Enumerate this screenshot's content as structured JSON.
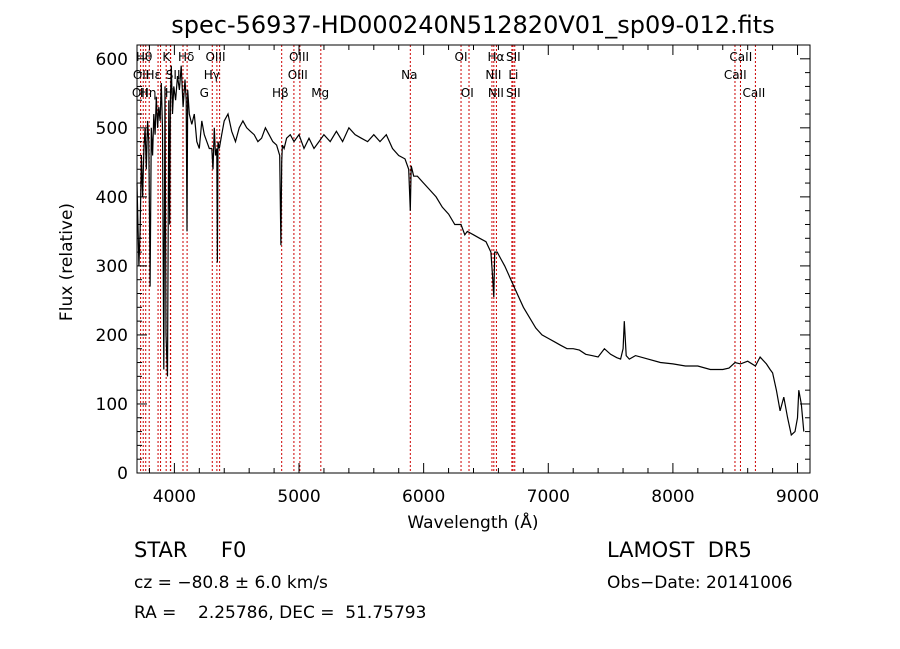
{
  "chart_data": {
    "type": "line",
    "title": "spec-56937-HD000240N512820V01_sp09-012.fits",
    "xlabel": "Wavelength (Å)",
    "ylabel": "Flux (relative)",
    "xlim": [
      3700,
      9100
    ],
    "ylim": [
      0,
      620
    ],
    "xticks": [
      4000,
      5000,
      6000,
      7000,
      8000,
      9000
    ],
    "yticks": [
      0,
      100,
      200,
      300,
      400,
      500,
      600
    ],
    "grid": false,
    "line_color": "#000000",
    "marker_color": "#cc0000",
    "series": [
      {
        "x": [
          3700,
          3715,
          3725,
          3735,
          3745,
          3755,
          3765,
          3775,
          3785,
          3795,
          3805,
          3815,
          3825,
          3835,
          3845,
          3855,
          3865,
          3875,
          3885,
          3895,
          3905,
          3915,
          3925,
          3933,
          3945,
          3955,
          3962,
          3968,
          3975,
          3985,
          3995,
          4010,
          4025,
          4040,
          4055,
          4070,
          4085,
          4095,
          4101,
          4107,
          4120,
          4140,
          4160,
          4180,
          4200,
          4220,
          4240,
          4260,
          4280,
          4300,
          4310,
          4320,
          4330,
          4340,
          4345,
          4350,
          4360,
          4380,
          4400,
          4430,
          4460,
          4490,
          4520,
          4550,
          4580,
          4610,
          4640,
          4670,
          4700,
          4730,
          4760,
          4790,
          4820,
          4845,
          4855,
          4861,
          4867,
          4880,
          4900,
          4930,
          4960,
          5000,
          5040,
          5080,
          5120,
          5160,
          5200,
          5250,
          5300,
          5350,
          5400,
          5450,
          5500,
          5550,
          5600,
          5650,
          5700,
          5750,
          5800,
          5850,
          5880,
          5893,
          5900,
          5920,
          5950,
          6000,
          6050,
          6100,
          6150,
          6200,
          6250,
          6300,
          6330,
          6350,
          6400,
          6450,
          6500,
          6540,
          6555,
          6563,
          6570,
          6590,
          6620,
          6650,
          6700,
          6750,
          6800,
          6850,
          6900,
          6950,
          7000,
          7050,
          7100,
          7150,
          7200,
          7250,
          7300,
          7350,
          7400,
          7450,
          7500,
          7550,
          7580,
          7600,
          7610,
          7625,
          7650,
          7700,
          7800,
          7900,
          8000,
          8100,
          8200,
          8300,
          8400,
          8450,
          8498,
          8542,
          8600,
          8662,
          8700,
          8750,
          8780,
          8800,
          8830,
          8860,
          8890,
          8920,
          8950,
          8980,
          9000,
          9010,
          9030,
          9050
        ],
        "y": [
          420,
          300,
          350,
          460,
          400,
          470,
          500,
          440,
          510,
          480,
          270,
          500,
          460,
          520,
          490,
          545,
          500,
          530,
          510,
          565,
          500,
          150,
          560,
          200,
          140,
          540,
          360,
          540,
          590,
          520,
          560,
          540,
          575,
          555,
          590,
          530,
          570,
          540,
          350,
          555,
          520,
          505,
          520,
          480,
          470,
          510,
          490,
          480,
          470,
          470,
          440,
          500,
          460,
          470,
          305,
          480,
          470,
          490,
          510,
          520,
          495,
          480,
          500,
          510,
          500,
          495,
          490,
          480,
          485,
          500,
          490,
          480,
          475,
          460,
          330,
          450,
          475,
          470,
          485,
          490,
          480,
          490,
          470,
          485,
          470,
          480,
          490,
          480,
          495,
          480,
          500,
          490,
          485,
          480,
          490,
          480,
          490,
          470,
          460,
          455,
          440,
          380,
          445,
          430,
          430,
          420,
          410,
          400,
          385,
          375,
          360,
          360,
          345,
          350,
          345,
          340,
          335,
          320,
          280,
          255,
          320,
          320,
          310,
          300,
          280,
          260,
          240,
          225,
          210,
          200,
          195,
          190,
          185,
          180,
          180,
          178,
          172,
          170,
          168,
          180,
          172,
          167,
          165,
          180,
          220,
          170,
          165,
          170,
          165,
          160,
          158,
          155,
          155,
          150,
          150,
          152,
          160,
          158,
          162,
          155,
          168,
          158,
          150,
          145,
          120,
          90,
          110,
          80,
          55,
          60,
          80,
          120,
          100,
          60
        ]
      }
    ],
    "line_markers": [
      {
        "x": 3729,
        "label": "OII"
      },
      {
        "x": 3750,
        "label": "Hθ"
      },
      {
        "x": 3770,
        "label": "Hη"
      },
      {
        "x": 3798,
        "label": "Hθ"
      },
      {
        "x": 3869,
        "label": "OII"
      },
      {
        "x": 3889,
        "label": "Hζ"
      },
      {
        "x": 3934,
        "label": "K"
      },
      {
        "x": 3968,
        "label": "Hε"
      },
      {
        "x": 3970,
        "label": "H"
      },
      {
        "x": 4069,
        "label": "SII"
      },
      {
        "x": 4102,
        "label": "Hδ"
      },
      {
        "x": 4304,
        "label": "G"
      },
      {
        "x": 4341,
        "label": "Hγ"
      },
      {
        "x": 4363,
        "label": "OIII"
      },
      {
        "x": 4861,
        "label": "Hβ"
      },
      {
        "x": 4959,
        "label": "OIII"
      },
      {
        "x": 5007,
        "label": "OIII"
      },
      {
        "x": 5175,
        "label": "Mg"
      },
      {
        "x": 5893,
        "label": "Na"
      },
      {
        "x": 6300,
        "label": "OI"
      },
      {
        "x": 6364,
        "label": "OI"
      },
      {
        "x": 6548,
        "label": "NII"
      },
      {
        "x": 6563,
        "label": "Hα"
      },
      {
        "x": 6584,
        "label": "NII"
      },
      {
        "x": 6708,
        "label": "Li"
      },
      {
        "x": 6717,
        "label": "SII"
      },
      {
        "x": 6731,
        "label": "SII"
      },
      {
        "x": 8498,
        "label": "CaII"
      },
      {
        "x": 8542,
        "label": "CaII"
      },
      {
        "x": 8662,
        "label": "CaII"
      }
    ],
    "marker_label_rows": [
      {
        "x": 3733,
        "row": 1,
        "label": "OII"
      },
      {
        "x": 3758,
        "row": 0,
        "label": "Hθ"
      },
      {
        "x": 3725,
        "row": 2,
        "label": "OII"
      },
      {
        "x": 3790,
        "row": 2,
        "label": "Hη"
      },
      {
        "x": 3830,
        "row": 1,
        "label": "Hε"
      },
      {
        "x": 3935,
        "row": 0,
        "label": "K"
      },
      {
        "x": 3990,
        "row": 1,
        "label": "SII"
      },
      {
        "x": 3960,
        "row": 2,
        "label": "H"
      },
      {
        "x": 4095,
        "row": 0,
        "label": "Hδ"
      },
      {
        "x": 4240,
        "row": 2,
        "label": "G"
      },
      {
        "x": 4330,
        "row": 0,
        "label": "OIII"
      },
      {
        "x": 4300,
        "row": 1,
        "label": "Hγ"
      },
      {
        "x": 4850,
        "row": 2,
        "label": "Hβ"
      },
      {
        "x": 5000,
        "row": 0,
        "label": "OIII"
      },
      {
        "x": 4990,
        "row": 1,
        "label": "OIII"
      },
      {
        "x": 5170,
        "row": 2,
        "label": "Mg"
      },
      {
        "x": 5885,
        "row": 1,
        "label": "Na"
      },
      {
        "x": 6300,
        "row": 0,
        "label": "OI"
      },
      {
        "x": 6350,
        "row": 2,
        "label": "OI"
      },
      {
        "x": 6580,
        "row": 0,
        "label": "Hα"
      },
      {
        "x": 6720,
        "row": 0,
        "label": "SII"
      },
      {
        "x": 6560,
        "row": 1,
        "label": "NII"
      },
      {
        "x": 6720,
        "row": 1,
        "label": "Li"
      },
      {
        "x": 6580,
        "row": 2,
        "label": "NII"
      },
      {
        "x": 6720,
        "row": 2,
        "label": "SII"
      },
      {
        "x": 8545,
        "row": 0,
        "label": "CaII"
      },
      {
        "x": 8500,
        "row": 1,
        "label": "CaII"
      },
      {
        "x": 8650,
        "row": 2,
        "label": "CaII"
      }
    ]
  },
  "info": {
    "object_class": "STAR     F0",
    "survey": "LAMOST  DR5",
    "cz": "cz = −80.8 ± 6.0 km/s",
    "obs_date": "Obs−Date: 20141006",
    "radec": "RA =    2.25786, DEC =  51.75793"
  }
}
